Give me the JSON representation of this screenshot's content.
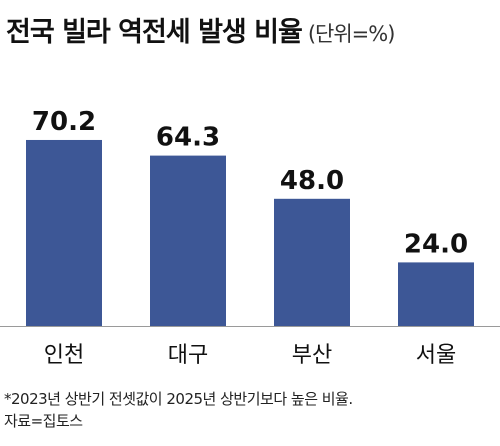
{
  "title": "전국 빌라 역전세 발생 비율",
  "unit": "(단위=%)",
  "chart_data": {
    "type": "bar",
    "categories": [
      "인천",
      "대구",
      "부산",
      "서울"
    ],
    "values": [
      70.2,
      64.3,
      48.0,
      24.0
    ],
    "value_labels": [
      "70.2",
      "64.3",
      "48.0",
      "24.0"
    ],
    "ylim": [
      0,
      80
    ],
    "grid": false,
    "bar_color": "#3d5796"
  },
  "footnote": {
    "line1": "*2023년 상반기 전셋값이 2025년 상반기보다 높은 비율.",
    "line2": "자료=집토스"
  }
}
